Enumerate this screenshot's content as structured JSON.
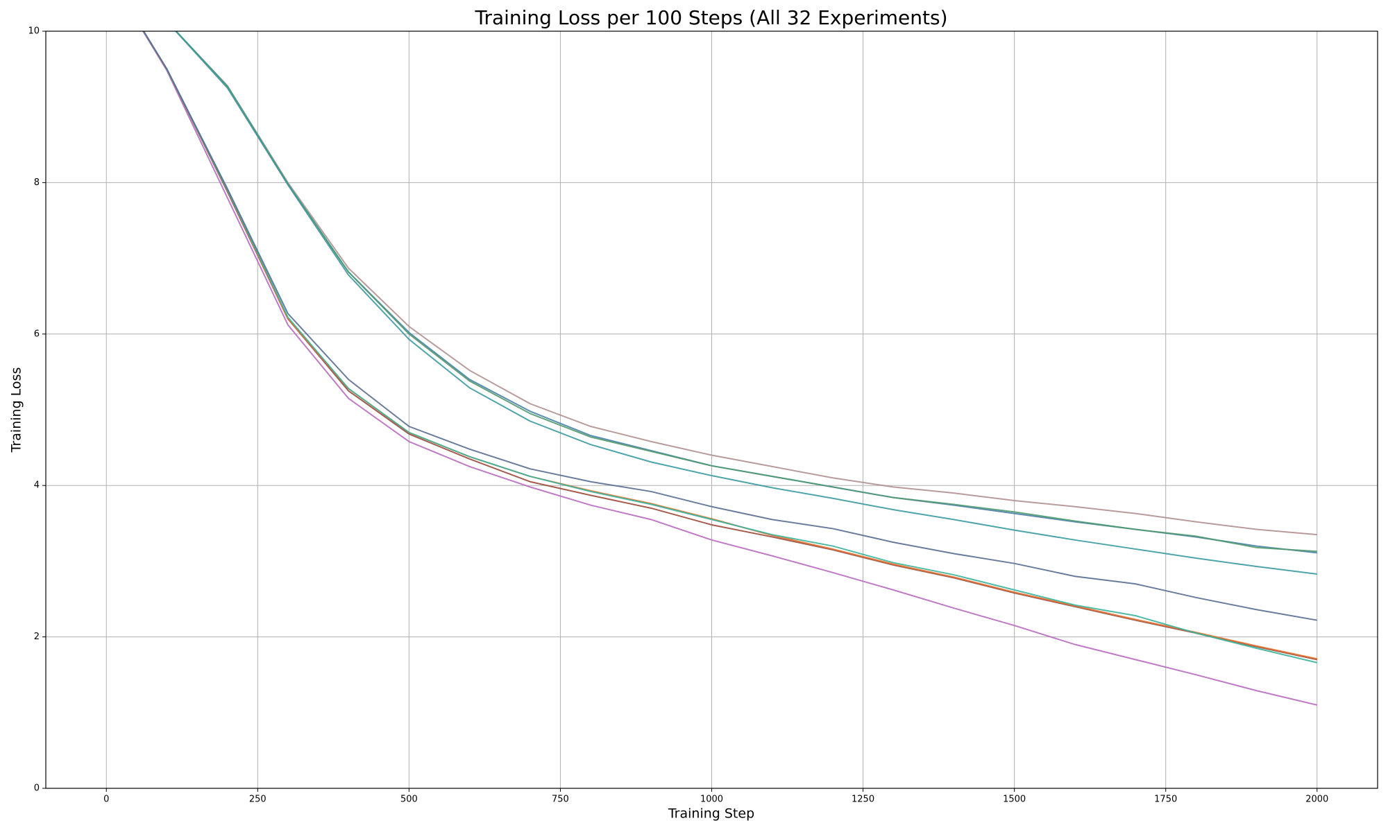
{
  "chart_data": {
    "type": "line",
    "title": "Training Loss per 100 Steps (All 32 Experiments)",
    "xlabel": "Training Step",
    "ylabel": "Training Loss",
    "x": [
      0,
      100,
      200,
      300,
      400,
      500,
      600,
      700,
      800,
      900,
      1000,
      1100,
      1200,
      1300,
      1400,
      1500,
      1600,
      1700,
      1800,
      1900,
      2000
    ],
    "series": [
      {
        "color": "#b86bc0",
        "values": [
          10.8,
          9.48,
          7.8,
          6.12,
          5.15,
          4.58,
          4.25,
          3.98,
          3.74,
          3.55,
          3.28,
          3.07,
          2.85,
          2.62,
          2.38,
          2.15,
          1.9,
          1.7,
          1.5,
          1.29,
          1.1
        ]
      },
      {
        "color": "#9b4a3a",
        "values": [
          10.8,
          9.5,
          7.88,
          6.2,
          5.25,
          4.68,
          4.35,
          4.05,
          3.87,
          3.7,
          3.48,
          3.32,
          3.15,
          2.95,
          2.78,
          2.58,
          2.4,
          2.22,
          2.05,
          1.87,
          1.7
        ]
      },
      {
        "color": "#e07030",
        "values": [
          10.8,
          9.5,
          7.9,
          6.2,
          5.28,
          4.7,
          4.38,
          4.12,
          3.93,
          3.76,
          3.56,
          3.34,
          3.16,
          2.96,
          2.79,
          2.59,
          2.41,
          2.23,
          2.06,
          1.88,
          1.71
        ]
      },
      {
        "color": "#3bb39a",
        "values": [
          10.8,
          9.5,
          7.9,
          6.22,
          5.28,
          4.7,
          4.38,
          4.12,
          3.92,
          3.75,
          3.55,
          3.35,
          3.2,
          2.98,
          2.82,
          2.62,
          2.42,
          2.28,
          2.05,
          1.85,
          1.66
        ]
      },
      {
        "color": "#5a6e90",
        "values": [
          10.8,
          9.5,
          7.92,
          6.27,
          5.4,
          4.78,
          4.48,
          4.22,
          4.05,
          3.92,
          3.72,
          3.55,
          3.43,
          3.25,
          3.1,
          2.97,
          2.8,
          2.7,
          2.52,
          2.36,
          2.22
        ]
      },
      {
        "color": "#b09090",
        "values": [
          11,
          10.13,
          9.28,
          8.0,
          6.87,
          6.1,
          5.52,
          5.08,
          4.78,
          4.58,
          4.4,
          4.25,
          4.1,
          3.98,
          3.9,
          3.8,
          3.72,
          3.63,
          3.52,
          3.42,
          3.35
        ]
      },
      {
        "color": "#4a80a8",
        "values": [
          11,
          10.13,
          9.27,
          7.98,
          6.82,
          6.02,
          5.4,
          4.98,
          4.66,
          4.46,
          4.26,
          4.12,
          3.98,
          3.84,
          3.74,
          3.63,
          3.52,
          3.42,
          3.32,
          3.2,
          3.11
        ]
      },
      {
        "color": "#4f9a70",
        "values": [
          11,
          10.13,
          9.27,
          7.98,
          6.82,
          6.0,
          5.38,
          4.95,
          4.64,
          4.45,
          4.26,
          4.12,
          3.98,
          3.84,
          3.75,
          3.65,
          3.53,
          3.42,
          3.33,
          3.18,
          3.13
        ]
      },
      {
        "color": "#3a9aa0",
        "values": [
          11,
          10.13,
          9.25,
          7.97,
          6.78,
          5.93,
          5.29,
          4.85,
          4.54,
          4.31,
          4.13,
          3.97,
          3.83,
          3.68,
          3.55,
          3.41,
          3.28,
          3.16,
          3.04,
          2.93,
          2.83
        ]
      }
    ],
    "xlim": [
      -100,
      2100
    ],
    "ylim": [
      0,
      10
    ],
    "xticks": [
      0,
      250,
      500,
      750,
      1000,
      1250,
      1500,
      1750,
      2000
    ],
    "yticks": [
      0,
      2,
      4,
      6,
      8,
      10
    ],
    "grid": true
  }
}
